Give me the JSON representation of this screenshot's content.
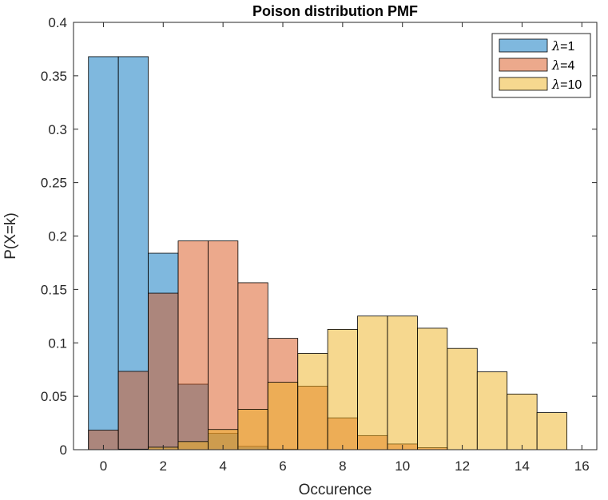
{
  "chart_data": {
    "type": "bar",
    "title": "Poison distribution PMF",
    "xlabel": "Occurence",
    "ylabel": "P(X=k)",
    "xlim": [
      -1,
      16.5
    ],
    "ylim": [
      0,
      0.4
    ],
    "xticks": [
      0,
      2,
      4,
      6,
      8,
      10,
      12,
      14,
      16
    ],
    "yticks": [
      0,
      0.05,
      0.1,
      0.15,
      0.2,
      0.25,
      0.3,
      0.35,
      0.4
    ],
    "ytick_labels": [
      "0",
      "0.05",
      "0.1",
      "0.15",
      "0.2",
      "0.25",
      "0.3",
      "0.35",
      "0.4"
    ],
    "legend_position": "top-right",
    "bar_width": 1,
    "series": [
      {
        "name": "λ=1",
        "color": "#0072BD",
        "x": [
          0,
          1,
          2,
          3,
          4,
          5,
          6
        ],
        "values": [
          0.3679,
          0.3679,
          0.1839,
          0.0613,
          0.0153,
          0.0031,
          0.0005
        ]
      },
      {
        "name": "λ=4",
        "color": "#D95319",
        "x": [
          0,
          1,
          2,
          3,
          4,
          5,
          6,
          7,
          8,
          9,
          10,
          11
        ],
        "values": [
          0.0183,
          0.0733,
          0.1465,
          0.1954,
          0.1954,
          0.1563,
          0.1042,
          0.0595,
          0.0298,
          0.0132,
          0.0053,
          0.0019
        ]
      },
      {
        "name": "λ=10",
        "color": "#EDB120",
        "x": [
          0,
          1,
          2,
          3,
          4,
          5,
          6,
          7,
          8,
          9,
          10,
          11,
          12,
          13,
          14,
          15
        ],
        "values": [
          0.0,
          0.0005,
          0.0023,
          0.0076,
          0.0189,
          0.0378,
          0.0631,
          0.0901,
          0.1126,
          0.1251,
          0.1251,
          0.1137,
          0.0948,
          0.0729,
          0.0521,
          0.0347
        ]
      }
    ]
  },
  "legend": {
    "lambda_symbol": "λ",
    "items": [
      "=1",
      "=4",
      "=10"
    ]
  }
}
